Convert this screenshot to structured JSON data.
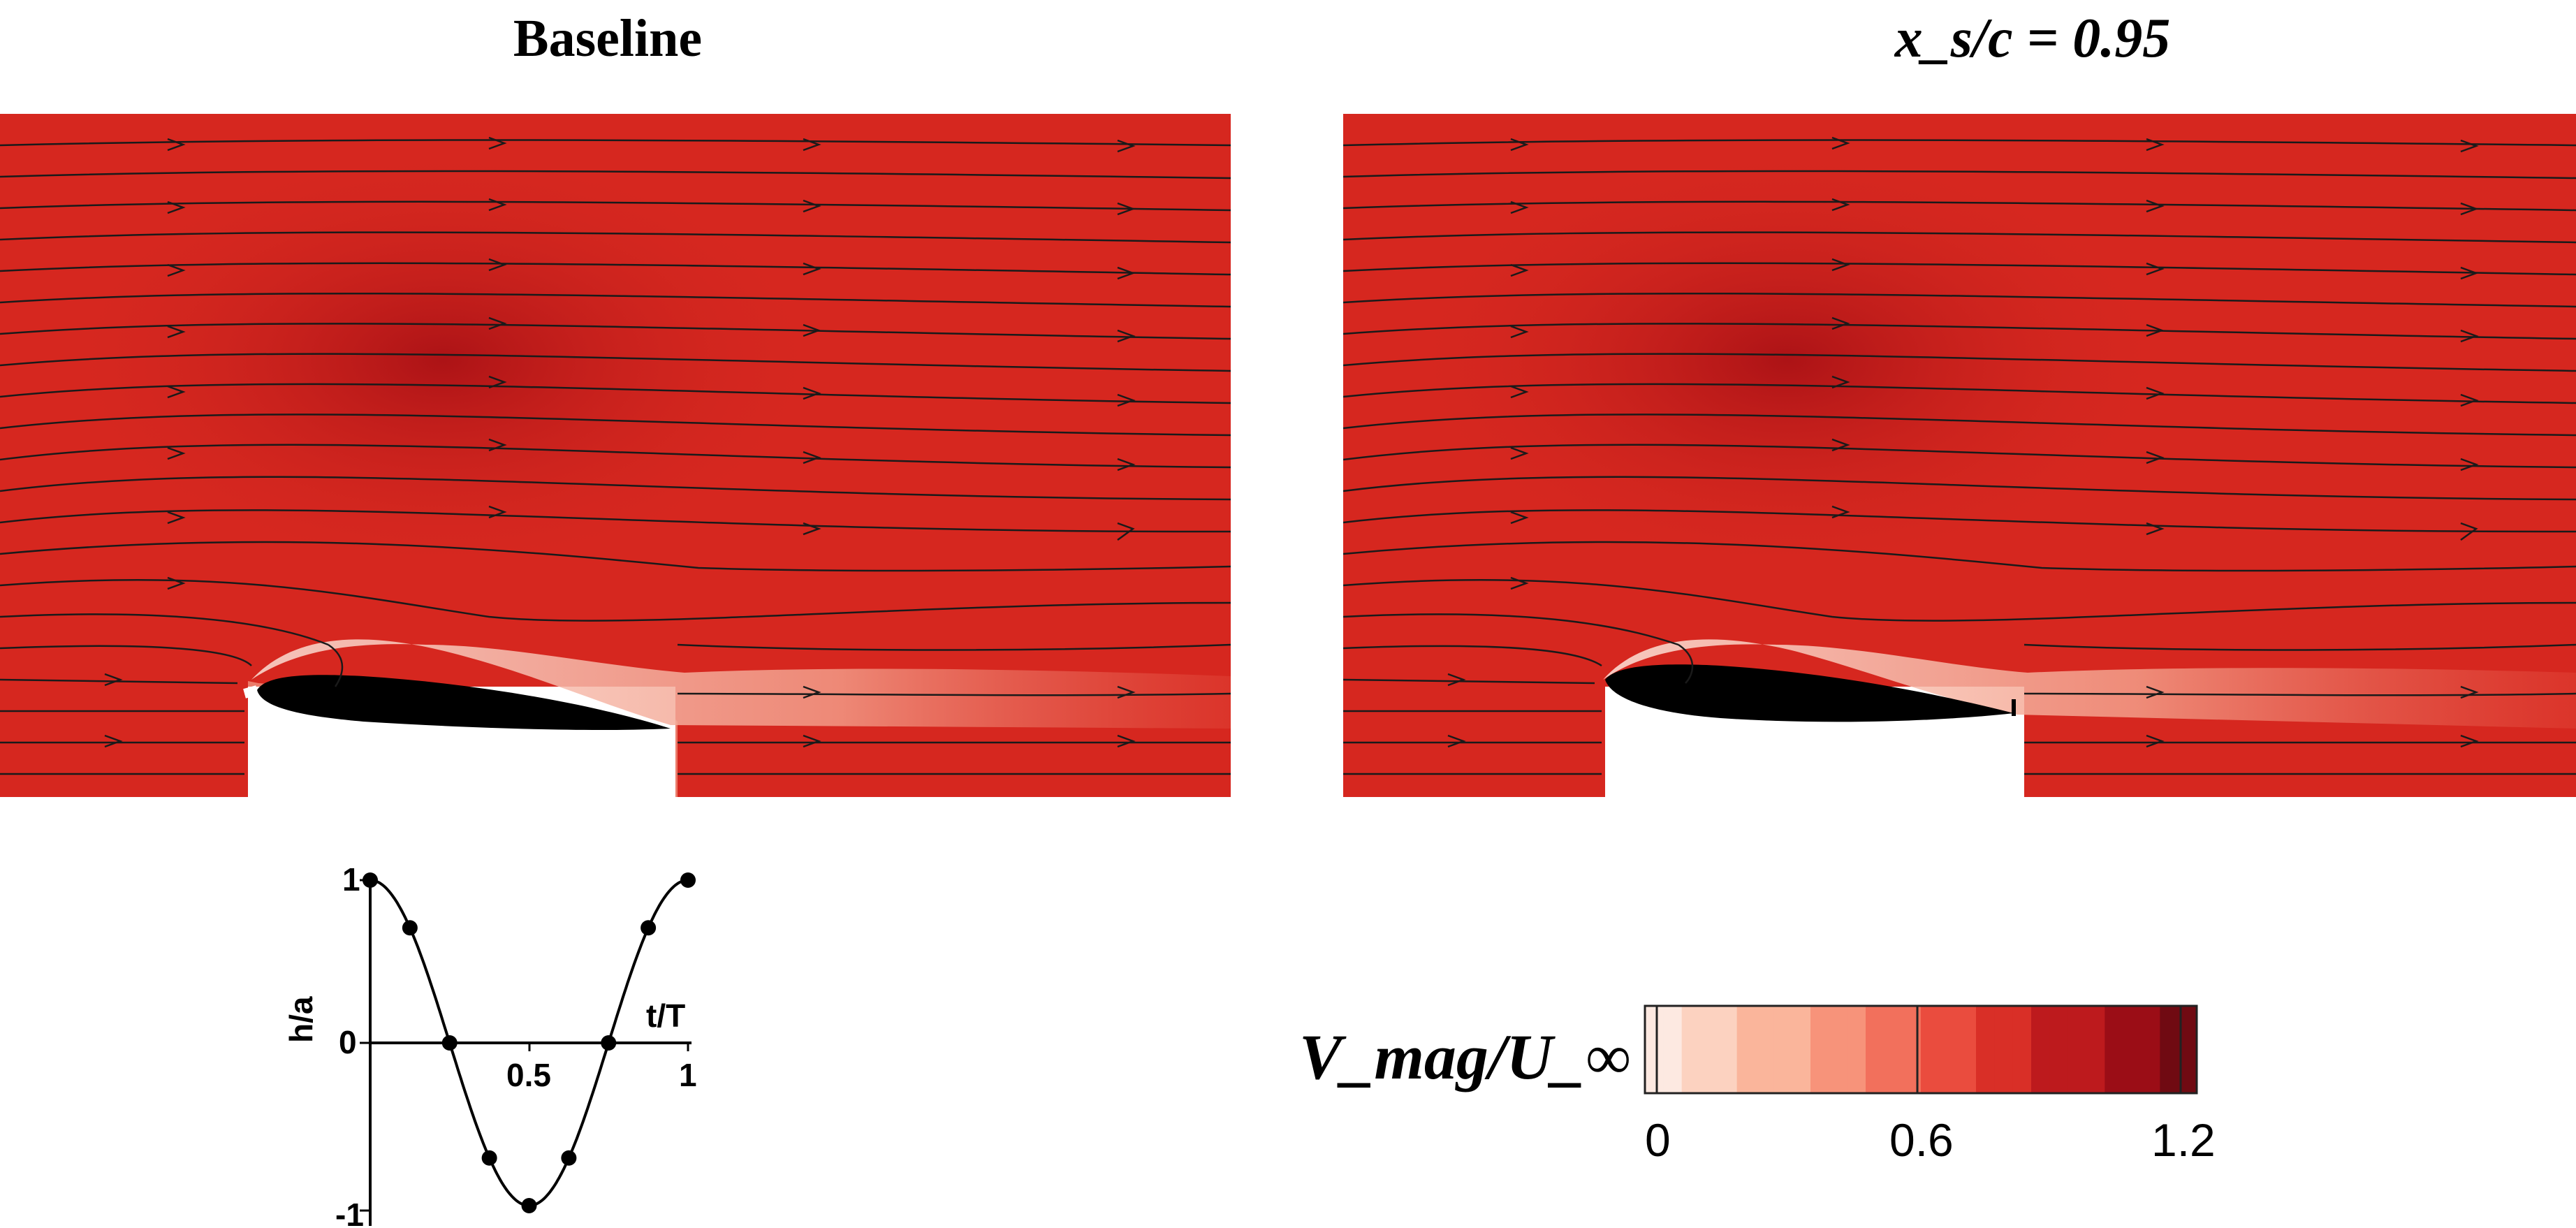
{
  "panels": [
    {
      "title": "Baseline"
    },
    {
      "title": "x_s/c = 0.95"
    }
  ],
  "colorbar": {
    "label": "V_mag/U_∞",
    "ticks": [
      "0",
      "0.6",
      "1.2"
    ],
    "range": [
      0,
      1.2
    ],
    "colors": [
      "#fde9e1",
      "#fcd2c0",
      "#fab59b",
      "#f7937a",
      "#f2705c",
      "#ea4c3e",
      "#d92f27",
      "#bd1a1d",
      "#9b0d16",
      "#700a12"
    ]
  },
  "heave_plot": {
    "ylabel": "h/a",
    "xlabel": "t/T",
    "yticks": [
      "1",
      "0",
      "-1"
    ],
    "xticks": [
      "0.5",
      "1"
    ],
    "points_t": [
      0,
      0.125,
      0.25,
      0.375,
      0.5,
      0.625,
      0.75,
      0.875,
      1.0
    ]
  },
  "icons": {
    "streamline_arrow": "arrowhead-icon",
    "foil": "airfoil-shape"
  }
}
